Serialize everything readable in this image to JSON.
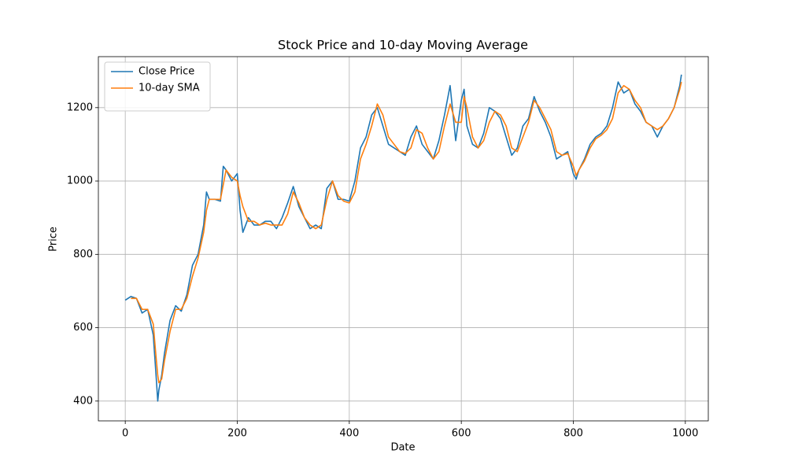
{
  "chart_data": {
    "type": "line",
    "title": "Stock Price and 10-day Moving Average",
    "x_label": "Date",
    "y_label": "Price",
    "x": [
      0,
      10,
      20,
      30,
      40,
      50,
      55,
      58,
      60,
      65,
      70,
      80,
      90,
      100,
      110,
      120,
      130,
      140,
      145,
      150,
      160,
      170,
      175,
      180,
      190,
      200,
      205,
      210,
      220,
      230,
      240,
      250,
      260,
      270,
      280,
      290,
      300,
      310,
      320,
      330,
      340,
      350,
      360,
      370,
      380,
      390,
      400,
      410,
      420,
      430,
      440,
      450,
      460,
      470,
      480,
      490,
      500,
      510,
      520,
      530,
      540,
      550,
      560,
      570,
      580,
      590,
      600,
      605,
      610,
      620,
      630,
      640,
      650,
      660,
      670,
      680,
      690,
      700,
      710,
      720,
      730,
      740,
      750,
      760,
      770,
      780,
      790,
      800,
      805,
      810,
      820,
      830,
      840,
      850,
      860,
      870,
      880,
      890,
      900,
      910,
      920,
      930,
      940,
      950,
      960,
      970,
      980,
      990,
      993
    ],
    "series": [
      {
        "name": "Close Price",
        "color": "#1f77b4",
        "values": [
          675,
          685,
          680,
          640,
          650,
          580,
          470,
          400,
          430,
          470,
          530,
          620,
          660,
          645,
          690,
          770,
          800,
          880,
          970,
          950,
          950,
          945,
          1040,
          1030,
          1000,
          1020,
          920,
          860,
          900,
          880,
          880,
          890,
          890,
          870,
          900,
          940,
          985,
          930,
          900,
          870,
          880,
          870,
          980,
          1000,
          950,
          950,
          945,
          1000,
          1090,
          1120,
          1180,
          1200,
          1150,
          1100,
          1090,
          1080,
          1070,
          1120,
          1150,
          1100,
          1080,
          1060,
          1110,
          1180,
          1260,
          1110,
          1220,
          1250,
          1150,
          1100,
          1090,
          1130,
          1200,
          1190,
          1170,
          1120,
          1070,
          1090,
          1150,
          1170,
          1230,
          1190,
          1160,
          1120,
          1060,
          1070,
          1080,
          1020,
          1005,
          1030,
          1060,
          1100,
          1120,
          1130,
          1150,
          1200,
          1270,
          1240,
          1250,
          1210,
          1190,
          1160,
          1150,
          1120,
          1150,
          1170,
          1200,
          1260,
          1290
        ]
      },
      {
        "name": "10-day SMA",
        "color": "#ff7f0e",
        "values": [
          null,
          680,
          680,
          650,
          650,
          610,
          520,
          470,
          450,
          460,
          510,
          590,
          650,
          650,
          680,
          740,
          790,
          860,
          920,
          950,
          950,
          950,
          990,
          1030,
          1010,
          1000,
          960,
          930,
          890,
          890,
          880,
          885,
          880,
          880,
          880,
          910,
          970,
          940,
          900,
          880,
          870,
          880,
          950,
          1000,
          960,
          945,
          940,
          970,
          1060,
          1100,
          1150,
          1210,
          1180,
          1120,
          1100,
          1080,
          1075,
          1090,
          1140,
          1130,
          1090,
          1060,
          1080,
          1150,
          1210,
          1160,
          1160,
          1230,
          1200,
          1120,
          1090,
          1110,
          1160,
          1190,
          1180,
          1150,
          1090,
          1080,
          1120,
          1160,
          1220,
          1200,
          1170,
          1140,
          1080,
          1070,
          1075,
          1040,
          1015,
          1030,
          1055,
          1090,
          1115,
          1125,
          1140,
          1170,
          1240,
          1260,
          1250,
          1220,
          1200,
          1160,
          1150,
          1140,
          1150,
          1170,
          1200,
          1250,
          1270
        ]
      }
    ],
    "xlim": [
      -48,
      1041
    ],
    "ylim": [
      346,
      1339
    ],
    "xticks": [
      0,
      200,
      400,
      600,
      800,
      1000
    ],
    "yticks": [
      400,
      600,
      800,
      1000,
      1200
    ],
    "grid": true,
    "legend": "upper-left"
  }
}
